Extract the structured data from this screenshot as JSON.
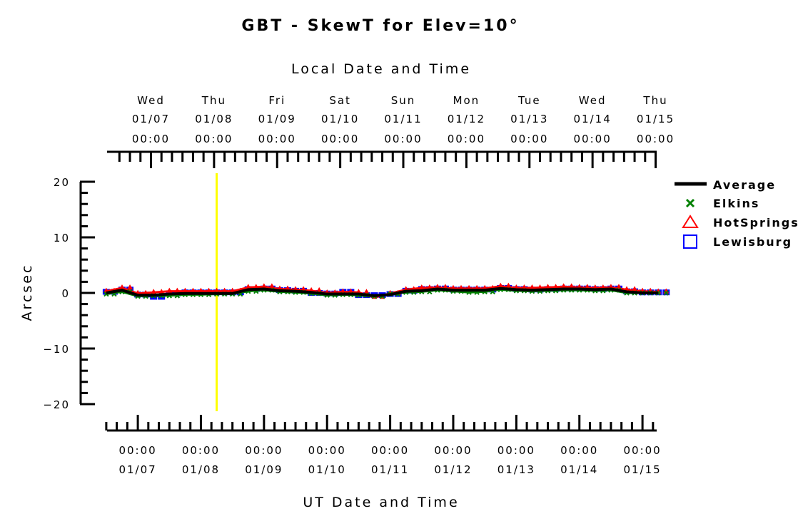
{
  "chart_data": {
    "type": "line",
    "title": "GBT - SkewT for Elev=10°",
    "top_xlabel": "Local Date and Time",
    "xlabel": "UT Date and Time",
    "ylabel": "Arcsec",
    "x_units": "hours since 01/07 00:00 UT",
    "xlim": [
      -11.7,
      197.4
    ],
    "ylim": [
      -20,
      20
    ],
    "yticks": [
      20,
      10,
      0,
      -10,
      -20
    ],
    "ytick_labels": [
      "20",
      "10",
      "0",
      "−10",
      "−20"
    ],
    "top_ticks": [
      {
        "day": "Wed",
        "date": "01/07",
        "time": "00:00",
        "x": 5
      },
      {
        "day": "Thu",
        "date": "01/08",
        "time": "00:00",
        "x": 29
      },
      {
        "day": "Fri",
        "date": "01/09",
        "time": "00:00",
        "x": 53
      },
      {
        "day": "Sat",
        "date": "01/10",
        "time": "00:00",
        "x": 77
      },
      {
        "day": "Sun",
        "date": "01/11",
        "time": "00:00",
        "x": 101
      },
      {
        "day": "Mon",
        "date": "01/12",
        "time": "00:00",
        "x": 125
      },
      {
        "day": "Tue",
        "date": "01/13",
        "time": "00:00",
        "x": 149
      },
      {
        "day": "Wed",
        "date": "01/14",
        "time": "00:00",
        "x": 173
      },
      {
        "day": "Thu",
        "date": "01/15",
        "time": "00:00",
        "x": 197
      }
    ],
    "bottom_ticks": [
      {
        "time": "00:00",
        "date": "01/07",
        "x": 0
      },
      {
        "time": "00:00",
        "date": "01/08",
        "x": 24
      },
      {
        "time": "00:00",
        "date": "01/09",
        "x": 48
      },
      {
        "time": "00:00",
        "date": "01/10",
        "x": 72
      },
      {
        "time": "00:00",
        "date": "01/11",
        "x": 96
      },
      {
        "time": "00:00",
        "date": "01/12",
        "x": 120
      },
      {
        "time": "00:00",
        "date": "01/13",
        "x": 144
      },
      {
        "time": "00:00",
        "date": "01/14",
        "x": 168
      },
      {
        "time": "00:00",
        "date": "01/15",
        "x": 192
      }
    ],
    "now_marker_x": 30,
    "now_marker_color": "#ffff00",
    "x": [
      -12,
      -6,
      0,
      6,
      12,
      18,
      24,
      30,
      36,
      42,
      48,
      54,
      60,
      66,
      72,
      78,
      84,
      90,
      96,
      102,
      108,
      114,
      120,
      126,
      132,
      138,
      144,
      150,
      156,
      162,
      168,
      174,
      180,
      186,
      192,
      198
    ],
    "series": [
      {
        "name": "Average",
        "color": "#000000",
        "marker": "line",
        "values": [
          0,
          0.5,
          -0.4,
          -0.4,
          -0.2,
          -0.1,
          -0.1,
          -0.1,
          -0.1,
          0.6,
          0.7,
          0.4,
          0.3,
          0.1,
          -0.2,
          -0.2,
          -0.2,
          -0.5,
          -0.3,
          0.3,
          0.4,
          0.7,
          0.5,
          0.5,
          0.5,
          0.8,
          0.6,
          0.5,
          0.6,
          0.7,
          0.7,
          0.6,
          0.7,
          0.2,
          0.0,
          0.0
        ]
      },
      {
        "name": "Elkins",
        "color": "#008000",
        "marker": "x",
        "values": [
          -0.2,
          0.2,
          -0.6,
          -0.5,
          -0.5,
          -0.3,
          -0.3,
          -0.2,
          -0.2,
          0.3,
          0.5,
          0.2,
          0.1,
          -0.1,
          -0.4,
          -0.3,
          -0.4,
          -0.6,
          -0.2,
          0.1,
          0.2,
          0.5,
          0.3,
          0.1,
          0.2,
          0.6,
          0.4,
          0.3,
          0.4,
          0.5,
          0.5,
          0.4,
          0.5,
          0.0,
          0.0,
          0.0
        ]
      },
      {
        "name": "HotSprings",
        "color": "#ff0000",
        "marker": "triangle",
        "values": [
          0.3,
          0.9,
          -0.1,
          0.1,
          0.3,
          0.3,
          0.3,
          0.3,
          0.3,
          1.0,
          1.1,
          0.7,
          0.6,
          0.4,
          0.0,
          0.2,
          0.1,
          -0.8,
          -0.1,
          0.6,
          0.9,
          1.0,
          0.8,
          0.8,
          0.8,
          1.2,
          0.9,
          0.9,
          1.0,
          1.1,
          1.0,
          0.9,
          1.0,
          0.6,
          0.3,
          0.2
        ]
      },
      {
        "name": "Lewisburg",
        "color": "#0000ff",
        "marker": "square",
        "values": [
          0.2,
          0.6,
          -0.3,
          -0.7,
          -0.1,
          0.1,
          0.1,
          0.1,
          0.1,
          0.7,
          0.8,
          0.5,
          0.4,
          0.0,
          -0.1,
          0.2,
          -0.4,
          -0.4,
          -0.2,
          0.4,
          0.7,
          0.8,
          0.6,
          0.6,
          0.6,
          0.9,
          0.7,
          0.6,
          0.7,
          0.8,
          0.8,
          0.7,
          0.8,
          0.3,
          0.1,
          0.1
        ]
      }
    ],
    "legend_position": "top-right"
  }
}
